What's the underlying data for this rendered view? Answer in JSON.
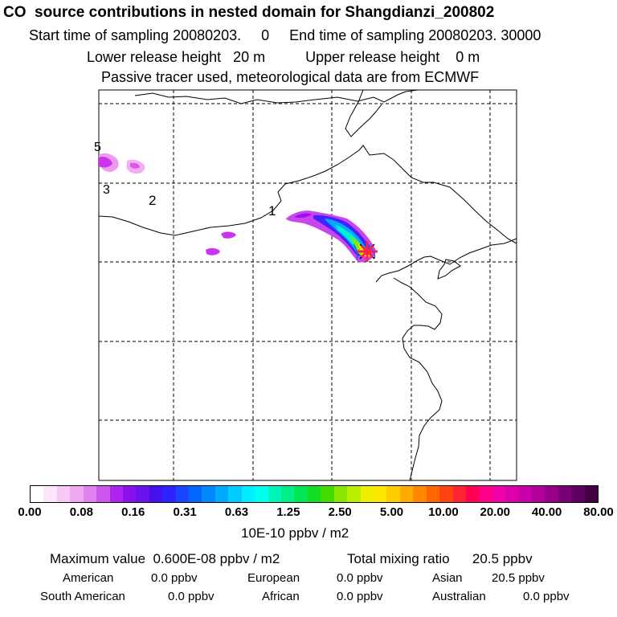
{
  "header": {
    "title": "CO  source contributions in nested domain for Shangdianzi_200802",
    "line2": "Start time of sampling 20080203.     0     End time of sampling 20080203. 30000",
    "line3": "Lower release height   20 m          Upper release height    0 m",
    "line4": "Passive tracer used, meteorological data are from ECMWF"
  },
  "map": {
    "labels": [
      "5",
      "3",
      "2",
      "1"
    ]
  },
  "colorbar": {
    "ticks": [
      "0.00",
      "0.08",
      "0.16",
      "0.31",
      "0.63",
      "1.25",
      "2.50",
      "5.00",
      "10.00",
      "20.00",
      "40.00",
      "80.00"
    ],
    "colors": [
      "#ffffff",
      "#fbe6fb",
      "#f6c8f6",
      "#f0a8f0",
      "#e082ee",
      "#cc55ee",
      "#b022ee",
      "#8a11ee",
      "#6a11ee",
      "#4411ee",
      "#2e22ff",
      "#1a44ff",
      "#0066ff",
      "#0088ff",
      "#00aaff",
      "#00ccff",
      "#00eeff",
      "#00ffee",
      "#00f5bb",
      "#00ee88",
      "#00e655",
      "#11dd22",
      "#44dd00",
      "#88e600",
      "#bbee00",
      "#eeee00",
      "#ffe600",
      "#ffcc00",
      "#ffaa00",
      "#ff8800",
      "#ff6600",
      "#ff4411",
      "#ff2233",
      "#ff0055",
      "#ff0088",
      "#f000a8",
      "#dd00aa",
      "#c800aa",
      "#b00099",
      "#990088",
      "#7a0077",
      "#5e0060",
      "#440044"
    ],
    "unit": "10E-10 ppbv / m2"
  },
  "summary": {
    "max_value": "Maximum value  0.600E-08 ppbv / m2",
    "total": "Total mixing ratio      20.5 ppbv",
    "sources": [
      {
        "name": "American",
        "value": "0.0 ppbv"
      },
      {
        "name": "European",
        "value": "0.0 ppbv"
      },
      {
        "name": "Asian",
        "value": "20.5 ppbv"
      },
      {
        "name": "South American",
        "value": "0.0 ppbv"
      },
      {
        "name": "African",
        "value": "0.0 ppbv"
      },
      {
        "name": "Australian",
        "value": "0.0 ppbv"
      }
    ]
  }
}
